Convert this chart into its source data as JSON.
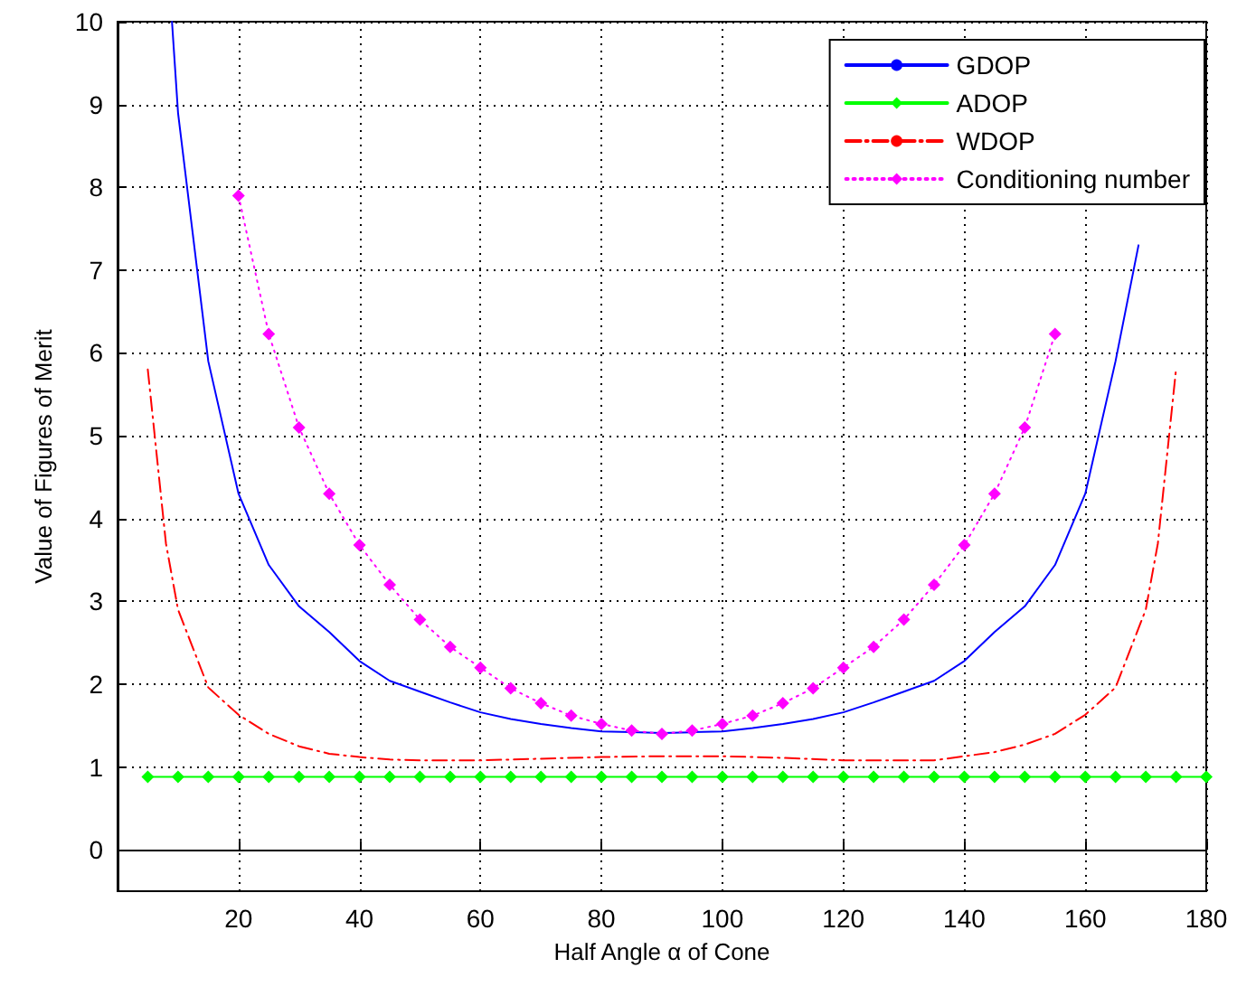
{
  "chart_data": {
    "type": "line",
    "xlabel": "Half Angle α of Cone",
    "ylabel": "Value of Figures of Merit",
    "xlim": [
      0,
      180
    ],
    "xticks": [
      20,
      40,
      60,
      80,
      100,
      120,
      140,
      160,
      180
    ],
    "ylim": [
      -0.5,
      10
    ],
    "yticks": [
      0,
      1,
      2,
      3,
      4,
      5,
      6,
      7,
      8,
      9,
      10
    ],
    "grid": true,
    "legend": "top right",
    "series": [
      {
        "name": "GDOP",
        "color": "#0000ff",
        "marker": "none",
        "line_style": "solid",
        "x": [
          9,
          10,
          15,
          20,
          25,
          30,
          35,
          40,
          45,
          50,
          55,
          60,
          65,
          70,
          75,
          80,
          85,
          90,
          95,
          100,
          105,
          110,
          115,
          120,
          125,
          130,
          135,
          140,
          145,
          150,
          155,
          160,
          165,
          168.8
        ],
        "values": [
          10,
          8.9,
          5.9,
          4.3,
          3.44,
          2.94,
          2.63,
          2.28,
          2.04,
          1.91,
          1.78,
          1.66,
          1.58,
          1.52,
          1.47,
          1.43,
          1.42,
          1.41,
          1.42,
          1.43,
          1.47,
          1.52,
          1.58,
          1.66,
          1.78,
          1.91,
          2.04,
          2.28,
          2.63,
          2.94,
          3.44,
          4.3,
          5.9,
          7.3
        ]
      },
      {
        "name": "ADOP",
        "color": "#00ff00",
        "marker": "diamond",
        "line_style": "solid",
        "x": [
          5,
          10,
          15,
          20,
          25,
          30,
          35,
          40,
          45,
          50,
          55,
          60,
          65,
          70,
          75,
          80,
          85,
          90,
          95,
          100,
          105,
          110,
          115,
          120,
          125,
          130,
          135,
          140,
          145,
          150,
          155,
          160,
          165,
          170,
          175,
          180
        ],
        "values": [
          0.88,
          0.88,
          0.88,
          0.88,
          0.88,
          0.88,
          0.88,
          0.88,
          0.88,
          0.88,
          0.88,
          0.88,
          0.88,
          0.88,
          0.88,
          0.88,
          0.88,
          0.88,
          0.88,
          0.88,
          0.88,
          0.88,
          0.88,
          0.88,
          0.88,
          0.88,
          0.88,
          0.88,
          0.88,
          0.88,
          0.88,
          0.88,
          0.88,
          0.88,
          0.88,
          0.88
        ]
      },
      {
        "name": "WDOP",
        "color": "#ff0000",
        "marker": "none",
        "line_style": "dashdot",
        "x": [
          5,
          8,
          10,
          15,
          20,
          25,
          30,
          35,
          40,
          45,
          50,
          60,
          70,
          80,
          90,
          100,
          110,
          120,
          130,
          135,
          140,
          145,
          150,
          155,
          160,
          165,
          170,
          172,
          175
        ],
        "values": [
          5.8,
          3.7,
          2.9,
          1.96,
          1.63,
          1.4,
          1.25,
          1.16,
          1.12,
          1.09,
          1.08,
          1.08,
          1.1,
          1.12,
          1.13,
          1.13,
          1.11,
          1.08,
          1.08,
          1.08,
          1.13,
          1.18,
          1.27,
          1.4,
          1.63,
          1.96,
          2.9,
          3.7,
          5.8
        ]
      },
      {
        "name": "Conditioning number",
        "color": "#ff00ff",
        "marker": "diamond",
        "line_style": "dotted",
        "x": [
          20,
          25,
          30,
          35,
          40,
          45,
          50,
          55,
          60,
          65,
          70,
          75,
          80,
          85,
          90,
          95,
          100,
          105,
          110,
          115,
          120,
          125,
          130,
          135,
          140,
          145,
          150,
          155
        ],
        "values": [
          7.9,
          6.23,
          5.1,
          4.3,
          3.68,
          3.2,
          2.78,
          2.45,
          2.2,
          1.95,
          1.77,
          1.62,
          1.52,
          1.44,
          1.4,
          1.44,
          1.52,
          1.62,
          1.77,
          1.95,
          2.2,
          2.45,
          2.78,
          3.2,
          3.68,
          4.3,
          5.1,
          6.23
        ]
      }
    ]
  }
}
